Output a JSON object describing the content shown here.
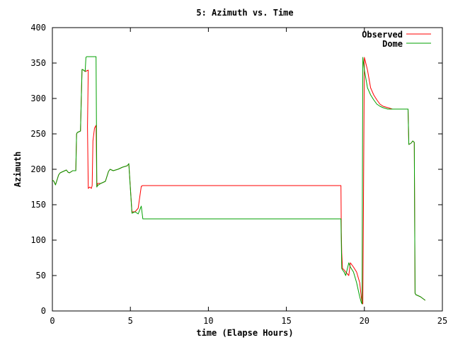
{
  "chart_data": {
    "type": "line",
    "title": "5: Azimuth vs. Time",
    "xlabel": "time (Elapse Hours)",
    "ylabel": "Azimuth",
    "xlim": [
      0,
      25
    ],
    "ylim": [
      0,
      400
    ],
    "xticks": [
      "0",
      "5",
      "10",
      "15",
      "20",
      "25"
    ],
    "yticks": [
      "0",
      "50",
      "100",
      "150",
      "200",
      "250",
      "300",
      "350",
      "400"
    ],
    "legend_position": "top-right",
    "grid": false,
    "series": [
      {
        "name": "Observed",
        "color": "#ff0000",
        "x": [
          0.0,
          0.1,
          0.2,
          0.3,
          0.4,
          0.5,
          0.7,
          0.9,
          1.0,
          1.1,
          1.3,
          1.5,
          1.55,
          1.6,
          1.8,
          1.9,
          2.0,
          2.1,
          2.3,
          2.25,
          2.3,
          2.4,
          2.5,
          2.55,
          2.6,
          2.7,
          2.8,
          2.85,
          2.9,
          3.1,
          3.4,
          3.6,
          3.7,
          3.9,
          4.2,
          4.5,
          4.8,
          4.9,
          5.1,
          5.3,
          5.5,
          5.7,
          5.8,
          8.0,
          12.0,
          16.0,
          18.0,
          18.5,
          18.52,
          18.55,
          18.6,
          18.7,
          18.8,
          19.0,
          19.1,
          19.3,
          19.5,
          19.7,
          19.8,
          19.85,
          19.9,
          20.0,
          20.2,
          20.4,
          20.6,
          20.8,
          21.0,
          21.2,
          21.5,
          21.8,
          22.0,
          22.3,
          22.6,
          22.7,
          22.8,
          22.85,
          23.0,
          23.1,
          23.2,
          23.25,
          23.3,
          23.6,
          23.9
        ],
        "y": [
          185,
          183,
          178,
          185,
          192,
          195,
          197,
          199,
          196,
          195,
          198,
          198,
          250,
          252,
          254,
          341,
          340,
          338,
          340,
          260,
          173,
          175,
          173,
          177,
          240,
          258,
          262,
          175,
          180,
          180,
          183,
          197,
          200,
          198,
          200,
          203,
          205,
          208,
          140,
          140,
          145,
          176,
          177,
          177,
          177,
          177,
          177,
          177,
          112,
          82,
          60,
          58,
          55,
          50,
          68,
          62,
          55,
          40,
          20,
          12,
          10,
          358,
          340,
          315,
          305,
          298,
          292,
          289,
          287,
          285,
          285,
          285,
          285,
          285,
          285,
          235,
          237,
          240,
          238,
          25,
          23,
          20,
          15
        ]
      },
      {
        "name": "Dome",
        "color": "#00a000",
        "x": [
          0.0,
          0.1,
          0.2,
          0.3,
          0.4,
          0.5,
          0.7,
          0.9,
          1.0,
          1.1,
          1.3,
          1.5,
          1.55,
          1.6,
          1.8,
          1.9,
          2.0,
          2.1,
          2.15,
          2.2,
          2.3,
          2.4,
          2.5,
          2.6,
          2.7,
          2.8,
          2.85,
          2.9,
          3.1,
          3.4,
          3.6,
          3.7,
          3.9,
          4.2,
          4.5,
          4.8,
          4.9,
          5.1,
          5.3,
          5.5,
          5.7,
          5.8,
          8.0,
          12.0,
          16.0,
          18.0,
          18.5,
          18.55,
          18.6,
          18.7,
          18.8,
          19.0,
          19.1,
          19.3,
          19.5,
          19.7,
          19.8,
          19.85,
          19.9,
          20.0,
          20.2,
          20.4,
          20.6,
          20.8,
          21.0,
          21.2,
          21.5,
          21.8,
          22.0,
          22.3,
          22.6,
          22.7,
          22.8,
          22.85,
          23.0,
          23.1,
          23.2,
          23.25,
          23.3,
          23.6,
          23.9
        ],
        "y": [
          185,
          183,
          178,
          185,
          192,
          195,
          197,
          199,
          196,
          195,
          198,
          198,
          250,
          252,
          254,
          341,
          340,
          338,
          358,
          359,
          359,
          359,
          359,
          359,
          359,
          359,
          175,
          177,
          180,
          183,
          197,
          200,
          198,
          200,
          203,
          205,
          208,
          138,
          140,
          137,
          148,
          130,
          130,
          130,
          130,
          130,
          130,
          60,
          58,
          55,
          50,
          68,
          62,
          55,
          40,
          20,
          12,
          10,
          358,
          340,
          315,
          305,
          298,
          292,
          289,
          287,
          285,
          285,
          285,
          285,
          285,
          285,
          285,
          235,
          237,
          240,
          238,
          25,
          23,
          20,
          15
        ]
      }
    ]
  }
}
